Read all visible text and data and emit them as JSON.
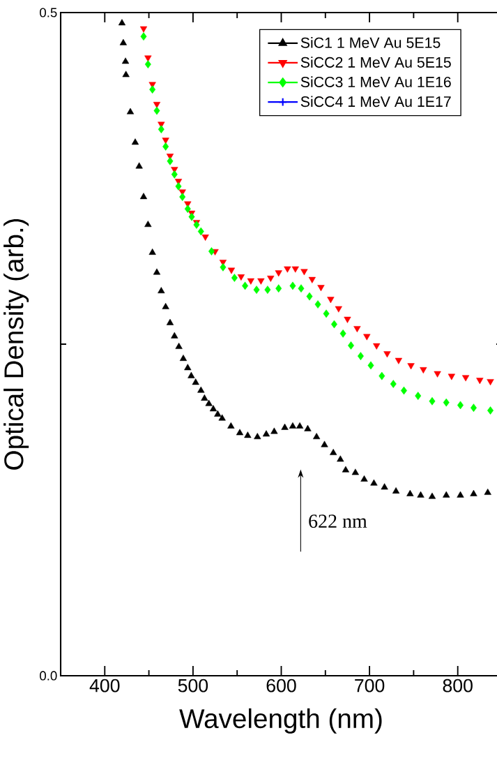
{
  "chart_data": {
    "type": "scatter",
    "xlabel": "Wavelength (nm)",
    "ylabel": "Optical Density (arb.)",
    "xlim": [
      350,
      850
    ],
    "ylim": [
      0,
      0.5
    ],
    "xticks": [
      400,
      {
        "value": 450,
        "label": null
      },
      500,
      {
        "value": 550,
        "label": null
      },
      600,
      {
        "value": 650,
        "label": null
      },
      700,
      {
        "value": 750,
        "label": null
      },
      800
    ],
    "yticks": [
      {
        "value": 0,
        "label": "0.0"
      },
      {
        "value": 0.25,
        "label": null
      },
      {
        "value": 0.5,
        "label": "0.5"
      }
    ],
    "legend": "top right",
    "annotations": [
      "622 nm"
    ],
    "series": [
      {
        "name": "SiC1 1 MeV Au 5E15",
        "color": "#000000",
        "marker": "triangle",
        "x": [
          419.5,
          421,
          423.5,
          424,
          429,
          434.5,
          439,
          444,
          449,
          454,
          459,
          464,
          469,
          474,
          479,
          484,
          489,
          494,
          498,
          503,
          509,
          513,
          518,
          523,
          528,
          533,
          543,
          553,
          562,
          573,
          583,
          592,
          604,
          613,
          621,
          630,
          640,
          649,
          659,
          667,
          673,
          684,
          694,
          705,
          717,
          730,
          746,
          758,
          771,
          787,
          803,
          818,
          834
        ],
        "values": [
          0.492,
          0.477,
          0.463,
          0.453,
          0.425,
          0.402,
          0.384,
          0.361,
          0.34,
          0.319,
          0.304,
          0.29,
          0.278,
          0.266,
          0.256,
          0.248,
          0.239,
          0.232,
          0.226,
          0.221,
          0.215,
          0.209,
          0.205,
          0.201,
          0.197,
          0.194,
          0.188,
          0.183,
          0.181,
          0.18,
          0.182,
          0.184,
          0.187,
          0.188,
          0.188,
          0.186,
          0.18,
          0.174,
          0.168,
          0.163,
          0.155,
          0.153,
          0.148,
          0.145,
          0.142,
          0.139,
          0.137,
          0.136,
          0.135,
          0.136,
          0.136,
          0.137,
          0.138
        ]
      },
      {
        "name": "SiCC2 1 MeV Au 5E15",
        "color": "#ff0000",
        "marker": "triangle-down",
        "x": [
          444,
          449,
          454,
          459,
          464,
          469,
          474,
          479,
          483.5,
          488,
          494,
          498.5,
          504,
          514,
          525,
          534,
          543.5,
          554.5,
          565.5,
          577,
          588,
          597,
          607,
          616,
          626,
          635,
          645,
          656,
          665,
          675,
          686,
          697,
          708,
          720,
          733,
          747,
          761,
          777,
          793,
          809,
          825,
          837
        ],
        "values": [
          0.488,
          0.466,
          0.446,
          0.431,
          0.416,
          0.404,
          0.392,
          0.382,
          0.373,
          0.365,
          0.356,
          0.349,
          0.342,
          0.331,
          0.32,
          0.312,
          0.306,
          0.301,
          0.298,
          0.298,
          0.3,
          0.304,
          0.307,
          0.307,
          0.305,
          0.299,
          0.293,
          0.284,
          0.277,
          0.269,
          0.262,
          0.256,
          0.249,
          0.243,
          0.238,
          0.234,
          0.231,
          0.228,
          0.226,
          0.225,
          0.223,
          0.222
        ]
      },
      {
        "name": "SiCC3 1 MeV Au 1E16",
        "color": "#00ff00",
        "marker": "diamond",
        "x": [
          444,
          449,
          454,
          459,
          464,
          469,
          474,
          479,
          483.5,
          488,
          494,
          498.5,
          504,
          509,
          521,
          534,
          547,
          559,
          572,
          584.5,
          597,
          613,
          622.5,
          632,
          641.5,
          651,
          660,
          670,
          679,
          690,
          701.5,
          714,
          727,
          739,
          755,
          771,
          787,
          803,
          818,
          837
        ],
        "values": [
          0.482,
          0.461,
          0.442,
          0.426,
          0.412,
          0.399,
          0.388,
          0.378,
          0.369,
          0.361,
          0.352,
          0.346,
          0.34,
          0.335,
          0.32,
          0.308,
          0.3,
          0.294,
          0.291,
          0.291,
          0.292,
          0.294,
          0.292,
          0.286,
          0.28,
          0.273,
          0.265,
          0.258,
          0.249,
          0.241,
          0.234,
          0.226,
          0.22,
          0.215,
          0.211,
          0.207,
          0.206,
          0.204,
          0.202,
          0.2
        ]
      },
      {
        "name": "SiCC4 1 MeV Au 1E17",
        "color": "#0000ff",
        "marker": "cross"
      }
    ]
  }
}
